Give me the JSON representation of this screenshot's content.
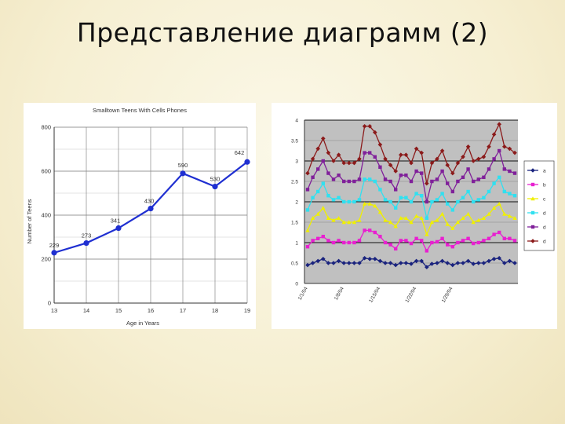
{
  "slide": {
    "title": "Представление диаграмм (2)"
  },
  "chart_data": [
    {
      "type": "line",
      "title": "Smalltown Teens With Cells Phones",
      "xlabel": "Age in Years",
      "ylabel": "Number of Teens",
      "x": [
        13,
        14,
        15,
        16,
        17,
        18,
        19
      ],
      "xticks": [
        "13",
        "14",
        "15",
        "16",
        "17",
        "18",
        "19"
      ],
      "yticks": [
        "0",
        "200",
        "400",
        "600",
        "800"
      ],
      "ylim": [
        0,
        800
      ],
      "series": [
        {
          "values": [
            229,
            273,
            341,
            430,
            590,
            530,
            642
          ],
          "labels": [
            "229",
            "273",
            "341",
            "430",
            "590",
            "530",
            "642"
          ]
        }
      ],
      "color": "#1f2fd1",
      "grid": true
    },
    {
      "type": "line",
      "xticks": [
        "1/1/04",
        "1/8/04",
        "1/15/04",
        "1/22/04",
        "1/29/04"
      ],
      "yticks": [
        "0",
        "0.5",
        "1",
        "1.5",
        "2",
        "2.5",
        "3",
        "3.5",
        "4"
      ],
      "ylim": [
        0,
        4
      ],
      "grid": true,
      "legend_position": "right",
      "series": [
        {
          "name": "a",
          "color": "#1a237e",
          "marker": "diamond",
          "values": [
            0.45,
            0.5,
            0.55,
            0.6,
            0.5,
            0.5,
            0.55,
            0.5,
            0.5,
            0.5,
            0.5,
            0.62,
            0.6,
            0.6,
            0.55,
            0.5,
            0.5,
            0.45,
            0.5,
            0.5,
            0.48,
            0.55,
            0.55,
            0.4,
            0.48,
            0.5,
            0.55,
            0.5,
            0.45,
            0.5,
            0.5,
            0.55,
            0.48,
            0.5,
            0.5,
            0.55,
            0.6,
            0.62,
            0.5,
            0.55,
            0.5
          ]
        },
        {
          "name": "b",
          "color": "#e820d0",
          "marker": "square",
          "values": [
            0.9,
            1.05,
            1.1,
            1.15,
            1.05,
            1.0,
            1.05,
            1.0,
            1.0,
            1.0,
            1.05,
            1.3,
            1.3,
            1.25,
            1.15,
            1.0,
            0.95,
            0.85,
            1.05,
            1.05,
            0.98,
            1.1,
            1.05,
            0.8,
            1.0,
            1.02,
            1.1,
            0.95,
            0.9,
            1.0,
            1.05,
            1.1,
            0.98,
            1.0,
            1.05,
            1.1,
            1.2,
            1.25,
            1.1,
            1.1,
            1.05
          ]
        },
        {
          "name": "c",
          "color": "#f0f000",
          "marker": "triangle",
          "values": [
            1.3,
            1.6,
            1.7,
            1.85,
            1.6,
            1.55,
            1.6,
            1.5,
            1.5,
            1.5,
            1.55,
            1.95,
            1.95,
            1.9,
            1.75,
            1.55,
            1.5,
            1.4,
            1.6,
            1.6,
            1.5,
            1.65,
            1.6,
            1.2,
            1.5,
            1.55,
            1.7,
            1.45,
            1.35,
            1.5,
            1.6,
            1.7,
            1.5,
            1.55,
            1.6,
            1.7,
            1.85,
            1.95,
            1.7,
            1.65,
            1.6
          ]
        },
        {
          "name": "d",
          "color": "#30e0f0",
          "marker": "square",
          "values": [
            1.8,
            2.1,
            2.25,
            2.45,
            2.15,
            2.05,
            2.1,
            2.0,
            2.0,
            2.0,
            2.05,
            2.55,
            2.55,
            2.5,
            2.3,
            2.05,
            2.0,
            1.85,
            2.1,
            2.1,
            2.0,
            2.2,
            2.15,
            1.6,
            2.0,
            2.05,
            2.2,
            1.95,
            1.8,
            2.0,
            2.1,
            2.25,
            2.0,
            2.05,
            2.1,
            2.25,
            2.45,
            2.6,
            2.25,
            2.2,
            2.15
          ]
        },
        {
          "name": "d",
          "color": "#80209a",
          "marker": "square",
          "values": [
            2.3,
            2.6,
            2.8,
            3.0,
            2.7,
            2.55,
            2.65,
            2.5,
            2.5,
            2.5,
            2.55,
            3.2,
            3.2,
            3.1,
            2.85,
            2.55,
            2.5,
            2.3,
            2.65,
            2.65,
            2.5,
            2.75,
            2.7,
            2.0,
            2.5,
            2.55,
            2.75,
            2.45,
            2.25,
            2.5,
            2.6,
            2.8,
            2.5,
            2.55,
            2.6,
            2.8,
            3.05,
            3.25,
            2.8,
            2.75,
            2.7
          ]
        },
        {
          "name": "d",
          "color": "#8b1a1a",
          "marker": "diamond",
          "values": [
            2.7,
            3.05,
            3.3,
            3.55,
            3.2,
            3.0,
            3.15,
            2.95,
            2.95,
            2.95,
            3.05,
            3.85,
            3.85,
            3.7,
            3.4,
            3.05,
            2.9,
            2.75,
            3.15,
            3.15,
            2.95,
            3.3,
            3.2,
            2.45,
            2.95,
            3.05,
            3.25,
            2.9,
            2.7,
            2.95,
            3.1,
            3.35,
            3.0,
            3.05,
            3.1,
            3.35,
            3.65,
            3.9,
            3.35,
            3.3,
            3.2
          ]
        }
      ]
    }
  ]
}
